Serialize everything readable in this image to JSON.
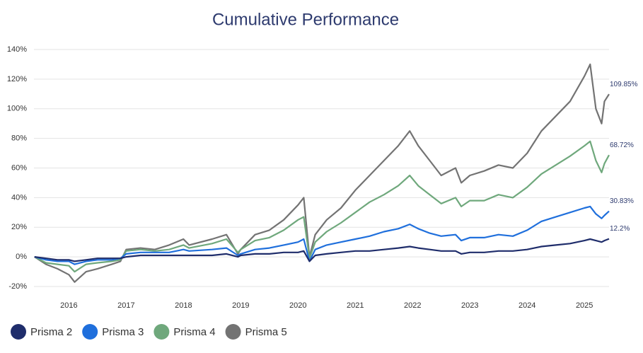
{
  "chart_data": {
    "type": "line",
    "title": "Cumulative Performance",
    "x": [
      2015.4,
      2015.6,
      2015.8,
      2016.0,
      2016.1,
      2016.3,
      2016.5,
      2016.75,
      2016.9,
      2017.0,
      2017.25,
      2017.5,
      2017.75,
      2018.0,
      2018.1,
      2018.5,
      2018.75,
      2018.95,
      2019.0,
      2019.25,
      2019.5,
      2019.75,
      2020.0,
      2020.1,
      2020.2,
      2020.3,
      2020.5,
      2020.75,
      2021.0,
      2021.25,
      2021.5,
      2021.75,
      2021.95,
      2022.1,
      2022.3,
      2022.5,
      2022.75,
      2022.85,
      2023.0,
      2023.25,
      2023.5,
      2023.75,
      2024.0,
      2024.25,
      2024.5,
      2024.75,
      2025.0,
      2025.1,
      2025.2,
      2025.3,
      2025.35,
      2025.43
    ],
    "series": [
      {
        "name": "Prisma 2",
        "color": "#1f2d6b",
        "end_label": "12.2%",
        "values": [
          0,
          -1,
          -2,
          -2,
          -3,
          -2,
          -1,
          -1,
          -1,
          0,
          1,
          1,
          1,
          1,
          1,
          1,
          2,
          0,
          1,
          2,
          2,
          3,
          3,
          4,
          -3,
          1,
          2,
          3,
          4,
          4,
          5,
          6,
          7,
          6,
          5,
          4,
          4,
          2,
          3,
          3,
          4,
          4,
          5,
          7,
          8,
          9,
          11,
          12,
          11,
          10,
          11,
          12.2
        ]
      },
      {
        "name": "Prisma 3",
        "color": "#1f6fdc",
        "end_label": "30.83%",
        "values": [
          0,
          -2,
          -3,
          -3,
          -5,
          -3,
          -2,
          -2,
          -1,
          2,
          3,
          3,
          3,
          5,
          4,
          5,
          6,
          1,
          2,
          5,
          6,
          8,
          10,
          12,
          -3,
          5,
          8,
          10,
          12,
          14,
          17,
          19,
          22,
          19,
          16,
          14,
          15,
          11,
          13,
          13,
          15,
          14,
          18,
          24,
          27,
          30,
          33,
          34,
          29,
          26,
          28,
          30.83
        ]
      },
      {
        "name": "Prisma 4",
        "color": "#6fa87c",
        "end_label": "68.72%",
        "values": [
          0,
          -4,
          -5,
          -6,
          -10,
          -5,
          -4,
          -3,
          -2,
          4,
          5,
          4,
          5,
          8,
          6,
          9,
          12,
          3,
          5,
          11,
          13,
          18,
          25,
          27,
          -1,
          10,
          17,
          23,
          30,
          37,
          42,
          48,
          55,
          48,
          42,
          36,
          40,
          34,
          38,
          38,
          42,
          40,
          47,
          56,
          62,
          68,
          75,
          78,
          65,
          57,
          63,
          68.72
        ]
      },
      {
        "name": "Prisma 5",
        "color": "#737373",
        "end_label": "109.85%",
        "values": [
          0,
          -5,
          -8,
          -12,
          -17,
          -10,
          -8,
          -5,
          -3,
          5,
          6,
          5,
          8,
          12,
          8,
          12,
          15,
          2,
          5,
          15,
          18,
          25,
          35,
          40,
          0,
          15,
          25,
          33,
          45,
          55,
          65,
          75,
          85,
          75,
          65,
          55,
          60,
          50,
          55,
          58,
          62,
          60,
          70,
          85,
          95,
          105,
          122,
          130,
          100,
          90,
          105,
          109.85
        ]
      }
    ],
    "xlim": [
      2015.39,
      2025.43
    ],
    "xticks": [
      2016,
      2017,
      2018,
      2019,
      2020,
      2021,
      2022,
      2023,
      2024,
      2025
    ],
    "ylim": [
      -20,
      140
    ],
    "yticks": [
      {
        "value": -20,
        "label": "-20%"
      },
      {
        "value": 0,
        "label": "0%"
      },
      {
        "value": 20,
        "label": "20%"
      },
      {
        "value": 40,
        "label": "40%"
      },
      {
        "value": 60,
        "label": "60%"
      },
      {
        "value": 80,
        "label": "80%"
      },
      {
        "value": 100,
        "label": "100%"
      },
      {
        "value": 120,
        "label": "120%"
      },
      {
        "value": 140,
        "label": "140%"
      }
    ],
    "grid": true
  }
}
